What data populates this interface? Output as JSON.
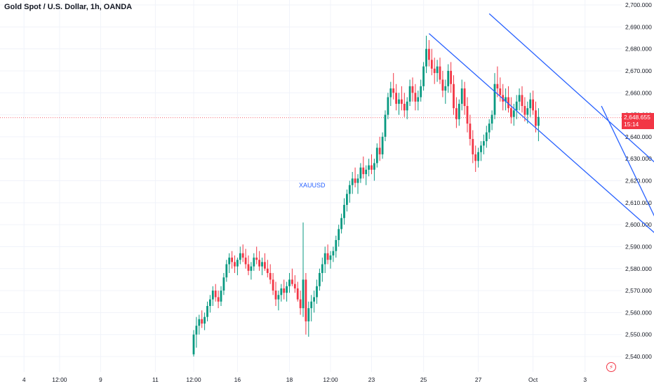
{
  "chart_data": {
    "type": "candlestick",
    "title": "Gold Spot / U.S. Dollar, 1h, OANDA",
    "symbol_label": "XAUUSD",
    "ylim": [
      2537,
      2703
    ],
    "y_ticks": [
      "2,700.000",
      "2,690.000",
      "2,680.000",
      "2,670.000",
      "2,660.000",
      "2,650.000",
      "2,640.000",
      "2,630.000",
      "2,620.000",
      "2,610.000",
      "2,600.000",
      "2,590.000",
      "2,580.000",
      "2,570.000",
      "2,560.000",
      "2,550.000",
      "2,540.000"
    ],
    "y_tick_values": [
      2700,
      2690,
      2680,
      2670,
      2660,
      2650,
      2640,
      2630,
      2620,
      2610,
      2600,
      2590,
      2580,
      2570,
      2560,
      2550,
      2540
    ],
    "x_ticks": [
      "4",
      "12:00",
      "9",
      "11",
      "12:00",
      "16",
      "18",
      "12:00",
      "23",
      "25",
      "27",
      "Oct",
      "3"
    ],
    "x_tick_bar_index": [
      -62,
      -49,
      -34,
      -14,
      0,
      16,
      35,
      50,
      65,
      84,
      104,
      124,
      143
    ],
    "last_price": 2648.655,
    "last_price_label": "2,648.655",
    "countdown": "15:14",
    "colors": {
      "up": "#089981",
      "down": "#f23645",
      "line": "#2962ff",
      "grid": "#f0f3fa",
      "text": "#131722",
      "watermark": "#2962ff"
    },
    "candles_ohlc": [
      [
        2541,
        2552,
        2540,
        2550
      ],
      [
        2550,
        2558,
        2544,
        2554
      ],
      [
        2554,
        2559,
        2550,
        2557
      ],
      [
        2557,
        2561,
        2553,
        2555
      ],
      [
        2555,
        2560,
        2552,
        2558
      ],
      [
        2558,
        2565,
        2556,
        2563
      ],
      [
        2563,
        2568,
        2560,
        2566
      ],
      [
        2566,
        2572,
        2563,
        2570
      ],
      [
        2570,
        2573,
        2565,
        2567
      ],
      [
        2567,
        2570,
        2562,
        2565
      ],
      [
        2565,
        2572,
        2563,
        2570
      ],
      [
        2570,
        2578,
        2568,
        2576
      ],
      [
        2576,
        2584,
        2574,
        2582
      ],
      [
        2582,
        2587,
        2578,
        2585
      ],
      [
        2585,
        2588,
        2580,
        2583
      ],
      [
        2583,
        2586,
        2578,
        2581
      ],
      [
        2581,
        2585,
        2577,
        2584
      ],
      [
        2584,
        2590,
        2582,
        2587
      ],
      [
        2587,
        2591,
        2583,
        2585
      ],
      [
        2585,
        2589,
        2580,
        2582
      ],
      [
        2582,
        2586,
        2577,
        2579
      ],
      [
        2579,
        2583,
        2575,
        2581
      ],
      [
        2581,
        2587,
        2579,
        2585
      ],
      [
        2585,
        2590,
        2582,
        2584
      ],
      [
        2584,
        2588,
        2579,
        2581
      ],
      [
        2581,
        2585,
        2577,
        2583
      ],
      [
        2583,
        2587,
        2579,
        2580
      ],
      [
        2580,
        2584,
        2576,
        2578
      ],
      [
        2578,
        2582,
        2573,
        2575
      ],
      [
        2575,
        2578,
        2568,
        2570
      ],
      [
        2570,
        2574,
        2563,
        2566
      ],
      [
        2566,
        2570,
        2561,
        2568
      ],
      [
        2568,
        2573,
        2565,
        2571
      ],
      [
        2571,
        2575,
        2566,
        2569
      ],
      [
        2569,
        2574,
        2565,
        2572
      ],
      [
        2572,
        2578,
        2569,
        2575
      ],
      [
        2575,
        2580,
        2572,
        2573
      ],
      [
        2573,
        2577,
        2569,
        2571
      ],
      [
        2571,
        2574,
        2565,
        2566
      ],
      [
        2566,
        2570,
        2559,
        2562
      ],
      [
        2562,
        2601,
        2558,
        2575
      ],
      [
        2575,
        2578,
        2550,
        2556
      ],
      [
        2556,
        2565,
        2549,
        2562
      ],
      [
        2562,
        2568,
        2556,
        2565
      ],
      [
        2565,
        2570,
        2560,
        2567
      ],
      [
        2567,
        2575,
        2564,
        2572
      ],
      [
        2572,
        2580,
        2570,
        2578
      ],
      [
        2578,
        2585,
        2574,
        2582
      ],
      [
        2582,
        2590,
        2578,
        2587
      ],
      [
        2587,
        2591,
        2582,
        2584
      ],
      [
        2584,
        2588,
        2580,
        2586
      ],
      [
        2586,
        2590,
        2583,
        2588
      ],
      [
        2588,
        2595,
        2585,
        2593
      ],
      [
        2593,
        2600,
        2590,
        2598
      ],
      [
        2598,
        2605,
        2596,
        2603
      ],
      [
        2603,
        2612,
        2600,
        2609
      ],
      [
        2609,
        2616,
        2606,
        2614
      ],
      [
        2614,
        2620,
        2610,
        2618
      ],
      [
        2618,
        2624,
        2614,
        2621
      ],
      [
        2621,
        2626,
        2617,
        2619
      ],
      [
        2619,
        2623,
        2614,
        2621
      ],
      [
        2621,
        2628,
        2619,
        2626
      ],
      [
        2626,
        2631,
        2621,
        2623
      ],
      [
        2623,
        2627,
        2618,
        2625
      ],
      [
        2625,
        2630,
        2622,
        2627
      ],
      [
        2627,
        2632,
        2623,
        2625
      ],
      [
        2625,
        2630,
        2620,
        2628
      ],
      [
        2628,
        2637,
        2626,
        2635
      ],
      [
        2635,
        2640,
        2629,
        2632
      ],
      [
        2632,
        2642,
        2630,
        2640
      ],
      [
        2640,
        2652,
        2638,
        2650
      ],
      [
        2650,
        2660,
        2648,
        2658
      ],
      [
        2658,
        2665,
        2654,
        2662
      ],
      [
        2662,
        2669,
        2657,
        2660
      ],
      [
        2660,
        2664,
        2652,
        2655
      ],
      [
        2655,
        2660,
        2650,
        2657
      ],
      [
        2657,
        2663,
        2652,
        2655
      ],
      [
        2655,
        2660,
        2649,
        2652
      ],
      [
        2652,
        2658,
        2648,
        2656
      ],
      [
        2656,
        2666,
        2654,
        2663
      ],
      [
        2663,
        2667,
        2656,
        2660
      ],
      [
        2660,
        2664,
        2652,
        2656
      ],
      [
        2656,
        2661,
        2652,
        2658
      ],
      [
        2658,
        2666,
        2656,
        2663
      ],
      [
        2663,
        2674,
        2661,
        2672
      ],
      [
        2672,
        2686,
        2669,
        2680
      ],
      [
        2680,
        2684,
        2672,
        2675
      ],
      [
        2675,
        2680,
        2668,
        2671
      ],
      [
        2671,
        2676,
        2664,
        2669
      ],
      [
        2669,
        2675,
        2665,
        2672
      ],
      [
        2672,
        2676,
        2664,
        2666
      ],
      [
        2666,
        2670,
        2658,
        2661
      ],
      [
        2661,
        2666,
        2655,
        2663
      ],
      [
        2663,
        2673,
        2660,
        2670
      ],
      [
        2670,
        2674,
        2660,
        2664
      ],
      [
        2664,
        2668,
        2650,
        2653
      ],
      [
        2653,
        2658,
        2644,
        2648
      ],
      [
        2648,
        2657,
        2645,
        2655
      ],
      [
        2655,
        2666,
        2652,
        2662
      ],
      [
        2662,
        2665,
        2650,
        2654
      ],
      [
        2654,
        2658,
        2642,
        2646
      ],
      [
        2646,
        2650,
        2636,
        2639
      ],
      [
        2639,
        2643,
        2628,
        2632
      ],
      [
        2632,
        2636,
        2624,
        2629
      ],
      [
        2629,
        2635,
        2626,
        2633
      ],
      [
        2633,
        2638,
        2629,
        2636
      ],
      [
        2636,
        2641,
        2632,
        2638
      ],
      [
        2638,
        2645,
        2635,
        2642
      ],
      [
        2642,
        2648,
        2639,
        2646
      ],
      [
        2646,
        2652,
        2643,
        2650
      ],
      [
        2650,
        2669,
        2648,
        2664
      ],
      [
        2664,
        2672,
        2658,
        2662
      ],
      [
        2662,
        2667,
        2656,
        2659
      ],
      [
        2659,
        2664,
        2652,
        2656
      ],
      [
        2656,
        2662,
        2652,
        2658
      ],
      [
        2658,
        2663,
        2651,
        2653
      ],
      [
        2653,
        2658,
        2646,
        2649
      ],
      [
        2649,
        2655,
        2645,
        2652
      ],
      [
        2652,
        2659,
        2648,
        2656
      ],
      [
        2656,
        2662,
        2652,
        2659
      ],
      [
        2659,
        2663,
        2651,
        2654
      ],
      [
        2654,
        2658,
        2647,
        2650
      ],
      [
        2650,
        2656,
        2646,
        2653
      ],
      [
        2653,
        2660,
        2649,
        2657
      ],
      [
        2657,
        2661,
        2650,
        2652
      ],
      [
        2652,
        2656,
        2642,
        2645
      ],
      [
        2645,
        2653,
        2638,
        2649
      ]
    ],
    "trendlines": [
      {
        "from": [
          86,
          2687
        ],
        "to": [
          175,
          2589
        ]
      },
      {
        "from": [
          108,
          2696
        ],
        "to": [
          175,
          2621
        ]
      },
      {
        "from": [
          149,
          2654
        ],
        "to": [
          171,
          2597
        ]
      },
      {
        "from": [
          171,
          2597
        ],
        "to": [
          175,
          2600
        ]
      }
    ],
    "grid": true
  }
}
